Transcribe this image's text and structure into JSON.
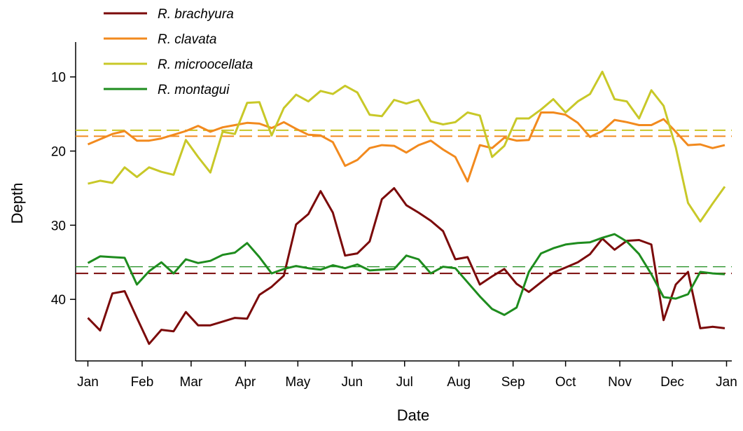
{
  "chart_data": {
    "type": "line",
    "x_label": "Date",
    "y_label": "Depth",
    "x": [
      0,
      7,
      14,
      21,
      28,
      35,
      42,
      49,
      56,
      63,
      70,
      77,
      84,
      91,
      98,
      105,
      112,
      119,
      126,
      133,
      140,
      147,
      154,
      161,
      168,
      175,
      182,
      189,
      196,
      203,
      210,
      217,
      224,
      231,
      238,
      245,
      252,
      259,
      266,
      273,
      280,
      287,
      294,
      301,
      308,
      315,
      322,
      329,
      336,
      343,
      350,
      357,
      364
    ],
    "xlim": [
      -7,
      368
    ],
    "xticks": [
      {
        "value": 0,
        "label": "Jan"
      },
      {
        "value": 31,
        "label": "Feb"
      },
      {
        "value": 59,
        "label": "Mar"
      },
      {
        "value": 90,
        "label": "Apr"
      },
      {
        "value": 120,
        "label": "May"
      },
      {
        "value": 151,
        "label": "Jun"
      },
      {
        "value": 181,
        "label": "Jul"
      },
      {
        "value": 212,
        "label": "Aug"
      },
      {
        "value": 243,
        "label": "Sep"
      },
      {
        "value": 273,
        "label": "Oct"
      },
      {
        "value": 304,
        "label": "Nov"
      },
      {
        "value": 334,
        "label": "Dec"
      },
      {
        "value": 365,
        "label": "Jan"
      }
    ],
    "ylim": [
      5.3,
      48.3
    ],
    "y_inverted": true,
    "yticks": [
      10,
      20,
      30,
      40
    ],
    "legend": "top-left",
    "series": [
      {
        "name": "R. brachyura",
        "color": "#7b0a0a",
        "mean": 36.5,
        "values": [
          42.5,
          44.2,
          39.2,
          38.9,
          42.5,
          46.0,
          44.1,
          44.3,
          41.7,
          43.5,
          43.5,
          43.0,
          42.5,
          42.6,
          39.4,
          38.3,
          36.8,
          29.9,
          28.5,
          25.4,
          28.3,
          34.1,
          33.8,
          32.2,
          26.5,
          25.0,
          27.3,
          28.3,
          29.4,
          30.8,
          34.6,
          34.3,
          38.0,
          36.9,
          35.9,
          37.9,
          39.0,
          37.7,
          36.4,
          35.7,
          35.0,
          33.9,
          31.8,
          33.3,
          32.1,
          32.0,
          32.6,
          42.8,
          38.0,
          36.3,
          43.9,
          43.7,
          43.9
        ]
      },
      {
        "name": "R. clavata",
        "color": "#f28a1e",
        "mean": 18.0,
        "values": [
          19.1,
          18.4,
          17.7,
          17.3,
          18.6,
          18.6,
          18.3,
          17.8,
          17.3,
          16.6,
          17.4,
          16.8,
          16.5,
          16.2,
          16.3,
          16.9,
          16.1,
          17.0,
          17.8,
          17.9,
          18.8,
          22.0,
          21.2,
          19.6,
          19.2,
          19.3,
          20.2,
          19.2,
          18.6,
          19.8,
          20.8,
          24.1,
          19.2,
          19.6,
          18.2,
          18.6,
          18.5,
          14.8,
          14.8,
          15.1,
          16.2,
          18.1,
          17.3,
          15.8,
          16.1,
          16.5,
          16.5,
          15.7,
          17.4,
          19.2,
          19.1,
          19.6,
          19.2
        ]
      },
      {
        "name": "R. microocellata",
        "color": "#c8c828",
        "mean": 17.2,
        "values": [
          24.4,
          24.0,
          24.3,
          22.2,
          23.5,
          22.2,
          22.8,
          23.2,
          18.5,
          20.8,
          22.9,
          17.4,
          17.7,
          13.5,
          13.4,
          17.9,
          14.2,
          12.4,
          13.3,
          11.9,
          12.3,
          11.2,
          12.1,
          15.1,
          15.3,
          13.1,
          13.6,
          13.1,
          16.0,
          16.4,
          16.1,
          14.8,
          15.2,
          20.8,
          19.3,
          15.6,
          15.6,
          14.4,
          13.0,
          14.8,
          13.3,
          12.3,
          9.3,
          13.0,
          13.3,
          15.6,
          11.8,
          13.9,
          19.5,
          27.0,
          29.5,
          27.1,
          24.8
        ]
      },
      {
        "name": "R. montagui",
        "color": "#1e8c1e",
        "mean": 35.6,
        "values": [
          35.1,
          34.2,
          34.3,
          34.4,
          38.0,
          36.2,
          35.0,
          36.5,
          34.6,
          35.1,
          34.8,
          34.0,
          33.7,
          32.4,
          34.3,
          36.5,
          35.9,
          35.5,
          35.8,
          36.0,
          35.4,
          35.8,
          35.3,
          36.1,
          36.0,
          35.9,
          34.1,
          34.6,
          36.5,
          35.6,
          35.8,
          37.7,
          39.6,
          41.3,
          42.1,
          41.1,
          36.3,
          33.8,
          33.1,
          32.6,
          32.4,
          32.3,
          31.7,
          31.2,
          32.2,
          33.9,
          36.6,
          39.7,
          39.9,
          39.3,
          36.3,
          36.5,
          36.6
        ]
      }
    ]
  }
}
